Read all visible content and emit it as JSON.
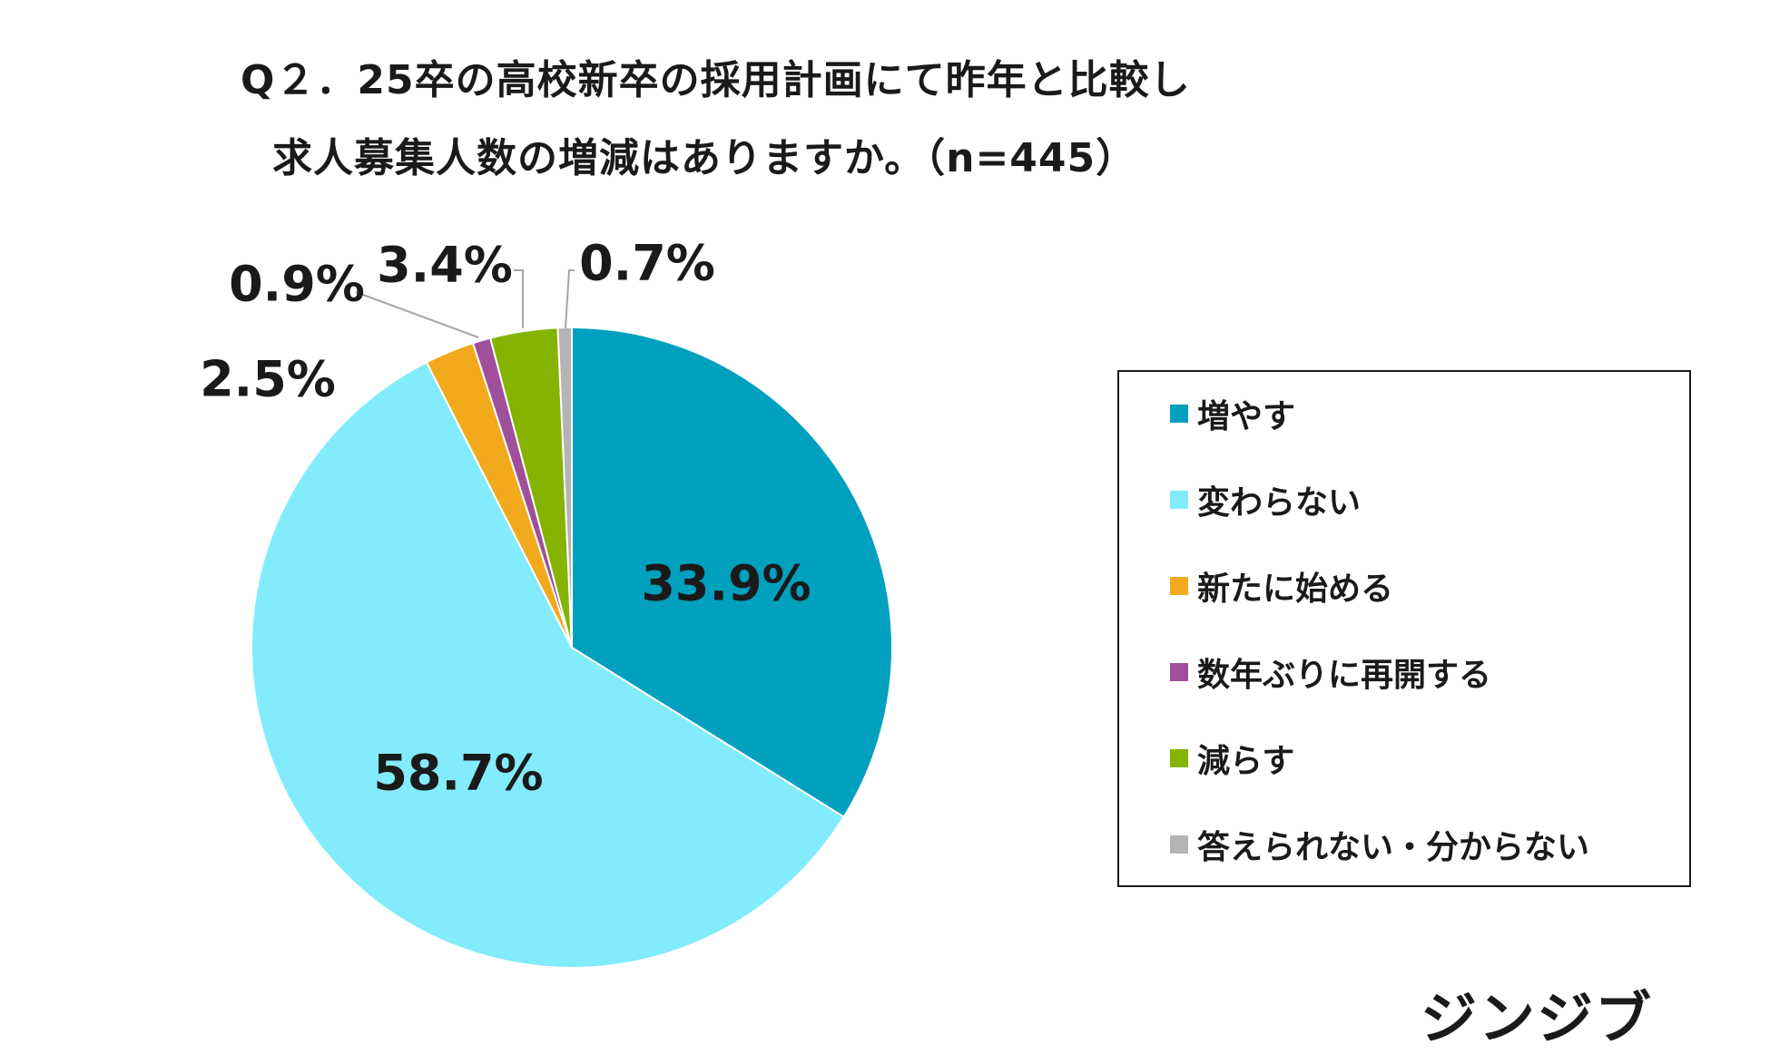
{
  "chart_data": {
    "type": "pie",
    "title": "Q２．25卒の高校新卒の採用計画にて昨年と比較し",
    "subtitle": "求人募集人数の増減はありますか。（n=445）",
    "slices": [
      {
        "name": "増やす",
        "value": 33.9,
        "label": "33.9%",
        "color": "#00A0BE"
      },
      {
        "name": "変わらない",
        "value": 58.7,
        "label": "58.7%",
        "color": "#82ECFC"
      },
      {
        "name": "新たに始める",
        "value": 2.5,
        "label": "2.5%",
        "color": "#F2AA1C"
      },
      {
        "name": "数年ぶりに再開する",
        "value": 0.9,
        "label": "0.9%",
        "color": "#A0509A"
      },
      {
        "name": "減らす",
        "value": 3.4,
        "label": "3.4%",
        "color": "#84B400"
      },
      {
        "name": "答えられない・分からない",
        "value": 0.7,
        "label": "0.7%",
        "color": "#B4B4B4"
      }
    ],
    "legend_position": "right"
  },
  "brand": "ジンジブ"
}
